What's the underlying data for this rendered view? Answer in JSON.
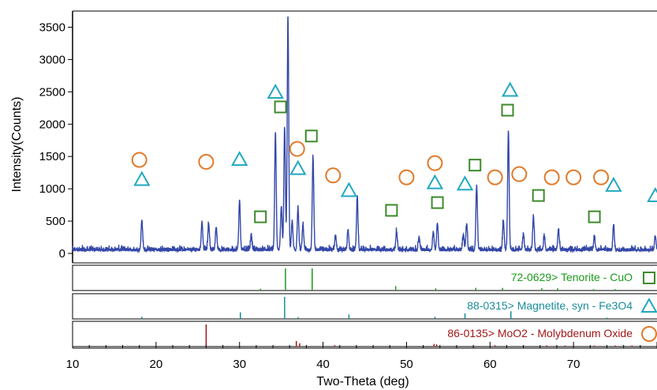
{
  "chart_data": {
    "type": "line",
    "xlabel": "Two-Theta (deg)",
    "ylabel": "Intensity(Counts)",
    "xlim": [
      10,
      80
    ],
    "ylim": [
      0,
      3750
    ],
    "x_ticks": [
      10,
      20,
      30,
      40,
      50,
      60,
      70
    ],
    "y_ticks": [
      0,
      500,
      1000,
      1500,
      2000,
      2500,
      3000,
      3500
    ],
    "series_color": "#3347a8",
    "pattern_peaks": [
      {
        "x": 18.3,
        "y": 470
      },
      {
        "x": 25.5,
        "y": 440
      },
      {
        "x": 26.3,
        "y": 420
      },
      {
        "x": 27.2,
        "y": 350
      },
      {
        "x": 30.0,
        "y": 780
      },
      {
        "x": 31.4,
        "y": 220
      },
      {
        "x": 34.3,
        "y": 1820
      },
      {
        "x": 35.0,
        "y": 680
      },
      {
        "x": 35.4,
        "y": 1900
      },
      {
        "x": 35.8,
        "y": 3600
      },
      {
        "x": 36.3,
        "y": 450
      },
      {
        "x": 37.0,
        "y": 640
      },
      {
        "x": 37.6,
        "y": 380
      },
      {
        "x": 38.8,
        "y": 1450
      },
      {
        "x": 41.5,
        "y": 230
      },
      {
        "x": 43.0,
        "y": 300
      },
      {
        "x": 44.1,
        "y": 800
      },
      {
        "x": 48.8,
        "y": 300
      },
      {
        "x": 51.5,
        "y": 200
      },
      {
        "x": 53.2,
        "y": 280
      },
      {
        "x": 53.7,
        "y": 420
      },
      {
        "x": 56.8,
        "y": 250
      },
      {
        "x": 57.2,
        "y": 400
      },
      {
        "x": 58.4,
        "y": 1000
      },
      {
        "x": 61.6,
        "y": 450
      },
      {
        "x": 62.2,
        "y": 1850
      },
      {
        "x": 64.0,
        "y": 250
      },
      {
        "x": 65.2,
        "y": 530
      },
      {
        "x": 66.5,
        "y": 220
      },
      {
        "x": 68.2,
        "y": 320
      },
      {
        "x": 72.5,
        "y": 200
      },
      {
        "x": 74.8,
        "y": 380
      },
      {
        "x": 79.8,
        "y": 220
      }
    ],
    "markers": [
      {
        "phase": "tenorite",
        "x": [
          32.5,
          34.9,
          38.6,
          48.2,
          53.7,
          58.2,
          62.1,
          65.8,
          72.5
        ]
      },
      {
        "phase": "magnetite",
        "x": [
          18.3,
          30.0,
          34.3,
          37.0,
          43.1,
          53.4,
          57.0,
          62.4,
          74.8,
          79.8
        ]
      },
      {
        "phase": "moo2",
        "x": [
          18.0,
          26.0,
          36.9,
          41.2,
          50.0,
          53.4,
          60.6,
          63.5,
          67.4,
          70.0,
          73.3
        ]
      }
    ],
    "reference_panels": [
      {
        "id": "tenorite",
        "label": "72-0629> Tenorite - CuO",
        "color": "#1a9a1a",
        "marker_color": "#3d8a2a",
        "marker": "square",
        "lines": [
          {
            "x": 35.5,
            "h": 1.0
          },
          {
            "x": 38.7,
            "h": 1.0
          },
          {
            "x": 32.5,
            "h": 0.08
          },
          {
            "x": 48.7,
            "h": 0.2
          },
          {
            "x": 53.5,
            "h": 0.1
          },
          {
            "x": 58.3,
            "h": 0.12
          },
          {
            "x": 61.5,
            "h": 0.12
          },
          {
            "x": 66.2,
            "h": 0.1
          },
          {
            "x": 68.1,
            "h": 0.1
          },
          {
            "x": 72.4,
            "h": 0.06
          },
          {
            "x": 75.0,
            "h": 0.06
          }
        ]
      },
      {
        "id": "magnetite",
        "label": "88-0315> Magnetite, syn - Fe3O4",
        "color": "#1a8c99",
        "marker_color": "#22a8c0",
        "marker": "triangle",
        "lines": [
          {
            "x": 35.4,
            "h": 1.0
          },
          {
            "x": 18.3,
            "h": 0.1
          },
          {
            "x": 30.1,
            "h": 0.3
          },
          {
            "x": 37.0,
            "h": 0.08
          },
          {
            "x": 43.1,
            "h": 0.2
          },
          {
            "x": 53.4,
            "h": 0.1
          },
          {
            "x": 57.0,
            "h": 0.25
          },
          {
            "x": 62.5,
            "h": 0.35
          },
          {
            "x": 74.0,
            "h": 0.06
          }
        ]
      },
      {
        "id": "moo2",
        "label": "86-0135> MoO2 - Molybdenum Oxide",
        "color": "#a01818",
        "marker_color": "#e07a2a",
        "marker": "circle",
        "lines": [
          {
            "x": 26.0,
            "h": 1.0
          },
          {
            "x": 36.8,
            "h": 0.25
          },
          {
            "x": 37.2,
            "h": 0.15
          },
          {
            "x": 41.4,
            "h": 0.06
          },
          {
            "x": 53.3,
            "h": 0.12
          },
          {
            "x": 53.6,
            "h": 0.1
          },
          {
            "x": 60.6,
            "h": 0.06
          },
          {
            "x": 66.8,
            "h": 0.05
          },
          {
            "x": 69.0,
            "h": 0.05
          },
          {
            "x": 72.5,
            "h": 0.05
          },
          {
            "x": 75.0,
            "h": 0.05
          },
          {
            "x": 77.0,
            "h": 0.05
          }
        ]
      }
    ],
    "grid": false,
    "legend": "reference panels below main plot"
  }
}
